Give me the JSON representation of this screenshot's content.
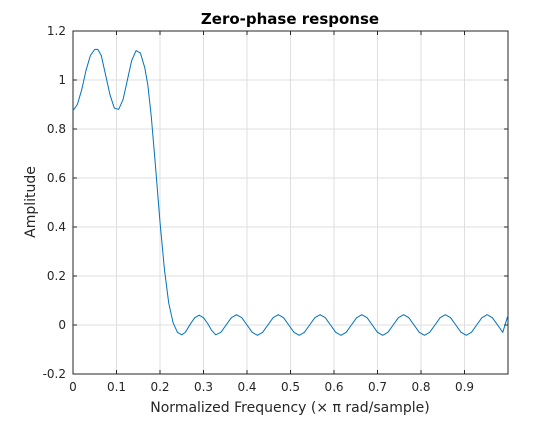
{
  "chart_data": {
    "type": "line",
    "title": "Zero-phase response",
    "xlabel": "Normalized Frequency (× π rad/sample)",
    "ylabel": "Amplitude",
    "xlim": [
      0,
      1
    ],
    "ylim": [
      -0.2,
      1.2
    ],
    "xticks": [
      0,
      0.1,
      0.2,
      0.3,
      0.4,
      0.5,
      0.6,
      0.7,
      0.8,
      0.9
    ],
    "xtick_labels": [
      "0",
      "0.1",
      "0.2",
      "0.3",
      "0.4",
      "0.5",
      "0.6",
      "0.7",
      "0.8",
      "0.9"
    ],
    "yticks": [
      -0.2,
      0,
      0.2,
      0.4,
      0.6,
      0.8,
      1,
      1.2
    ],
    "ytick_labels": [
      "-0.2",
      "0",
      "0.2",
      "0.4",
      "0.6",
      "0.8",
      "1",
      "1.2"
    ],
    "grid": true,
    "colors": {
      "line": "#0072bd",
      "grid": "#dfdfdf",
      "axes": "#262626"
    },
    "series": [
      {
        "x": [
          0.0,
          0.01,
          0.02,
          0.03,
          0.04,
          0.05,
          0.057,
          0.065,
          0.075,
          0.085,
          0.095,
          0.105,
          0.115,
          0.125,
          0.135,
          0.145,
          0.155,
          0.165,
          0.172,
          0.18,
          0.19,
          0.2,
          0.21,
          0.22,
          0.23,
          0.24,
          0.25,
          0.258,
          0.265,
          0.272,
          0.28,
          0.29,
          0.3,
          0.31,
          0.318,
          0.328,
          0.34,
          0.352,
          0.364,
          0.376,
          0.388,
          0.4,
          0.412,
          0.424,
          0.436,
          0.448,
          0.46,
          0.472,
          0.484,
          0.496,
          0.508,
          0.52,
          0.532,
          0.544,
          0.556,
          0.568,
          0.58,
          0.592,
          0.604,
          0.616,
          0.628,
          0.64,
          0.652,
          0.664,
          0.676,
          0.688,
          0.7,
          0.712,
          0.724,
          0.736,
          0.748,
          0.76,
          0.772,
          0.784,
          0.796,
          0.808,
          0.82,
          0.832,
          0.844,
          0.856,
          0.868,
          0.88,
          0.892,
          0.904,
          0.916,
          0.928,
          0.94,
          0.952,
          0.964,
          0.976,
          0.988,
          1.0
        ],
        "values": [
          0.875,
          0.9,
          0.96,
          1.04,
          1.1,
          1.125,
          1.125,
          1.1,
          1.02,
          0.94,
          0.885,
          0.88,
          0.92,
          1.0,
          1.08,
          1.12,
          1.11,
          1.05,
          0.98,
          0.85,
          0.64,
          0.42,
          0.23,
          0.09,
          0.01,
          -0.03,
          -0.04,
          -0.03,
          -0.01,
          0.01,
          0.03,
          0.04,
          0.03,
          0.005,
          -0.02,
          -0.04,
          -0.03,
          0.0,
          0.03,
          0.042,
          0.03,
          0.0,
          -0.03,
          -0.042,
          -0.03,
          0.0,
          0.03,
          0.042,
          0.03,
          0.0,
          -0.03,
          -0.042,
          -0.03,
          0.0,
          0.03,
          0.042,
          0.03,
          0.0,
          -0.03,
          -0.042,
          -0.03,
          0.0,
          0.03,
          0.042,
          0.03,
          0.0,
          -0.03,
          -0.042,
          -0.03,
          0.0,
          0.03,
          0.042,
          0.03,
          0.0,
          -0.03,
          -0.042,
          -0.03,
          0.0,
          0.03,
          0.042,
          0.03,
          0.0,
          -0.03,
          -0.042,
          -0.03,
          0.0,
          0.03,
          0.042,
          0.03,
          0.0,
          -0.03,
          0.04
        ]
      }
    ]
  }
}
